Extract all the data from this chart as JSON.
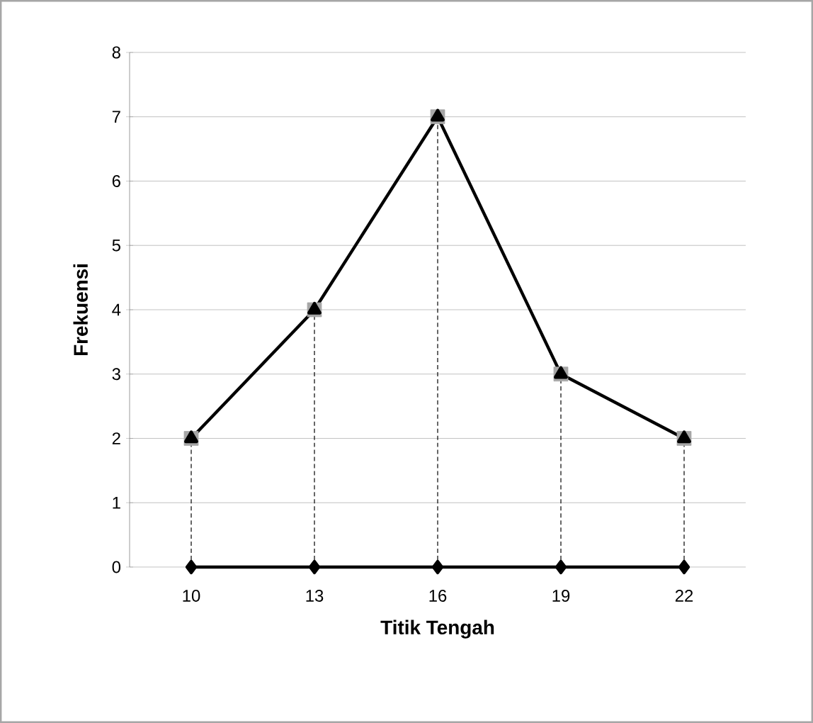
{
  "chart_data": {
    "type": "line",
    "xlabel": "Titik Tengah",
    "ylabel": "Frekuensi",
    "categories": [
      "10",
      "13",
      "16",
      "19",
      "22"
    ],
    "series": [
      {
        "type": "lollipop",
        "color": "#a6a6a6",
        "marker": "square",
        "line_style": "dashed",
        "values": [
          2,
          4,
          7,
          3,
          2
        ]
      },
      {
        "color": "#000000",
        "marker": "triangle",
        "line_style": "solid",
        "values": [
          2,
          4,
          7,
          3,
          2
        ]
      },
      {
        "color": "#000000",
        "marker": "diamond",
        "line_style": "solid",
        "values": [
          0,
          0,
          0,
          0,
          0
        ]
      }
    ],
    "ylim": [
      0,
      8
    ],
    "yticks": [
      0,
      1,
      2,
      3,
      4,
      5,
      6,
      7,
      8
    ],
    "grid": "y"
  }
}
